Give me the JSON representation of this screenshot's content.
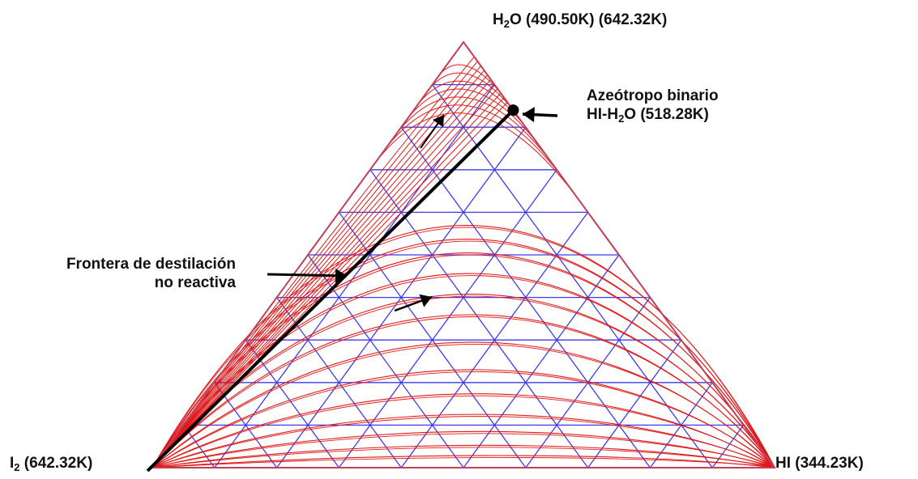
{
  "diagram": {
    "vertices": {
      "top": {
        "species_sub_before": "H",
        "sub": "2",
        "species_after": "O",
        "temps": "(490.50K)  (642.32K)"
      },
      "left": {
        "species": "I",
        "sub": "2",
        "temp": "(642.32K)"
      },
      "right": {
        "species": "HI",
        "temp": "(344.23K)"
      }
    },
    "azeotrope": {
      "line1": "Azeótropo binario",
      "line2_a": "HI-H",
      "line2_sub": "2",
      "line2_b": "O (518.28K)"
    },
    "boundary": {
      "line1": "Frontera de destilación",
      "line2": "no reactiva"
    },
    "grid_divisions": 10,
    "colors": {
      "grid": "#3b3bf0",
      "residue_curves": "#e01818",
      "boundary": "#000000",
      "outline": "#c0405a"
    }
  }
}
